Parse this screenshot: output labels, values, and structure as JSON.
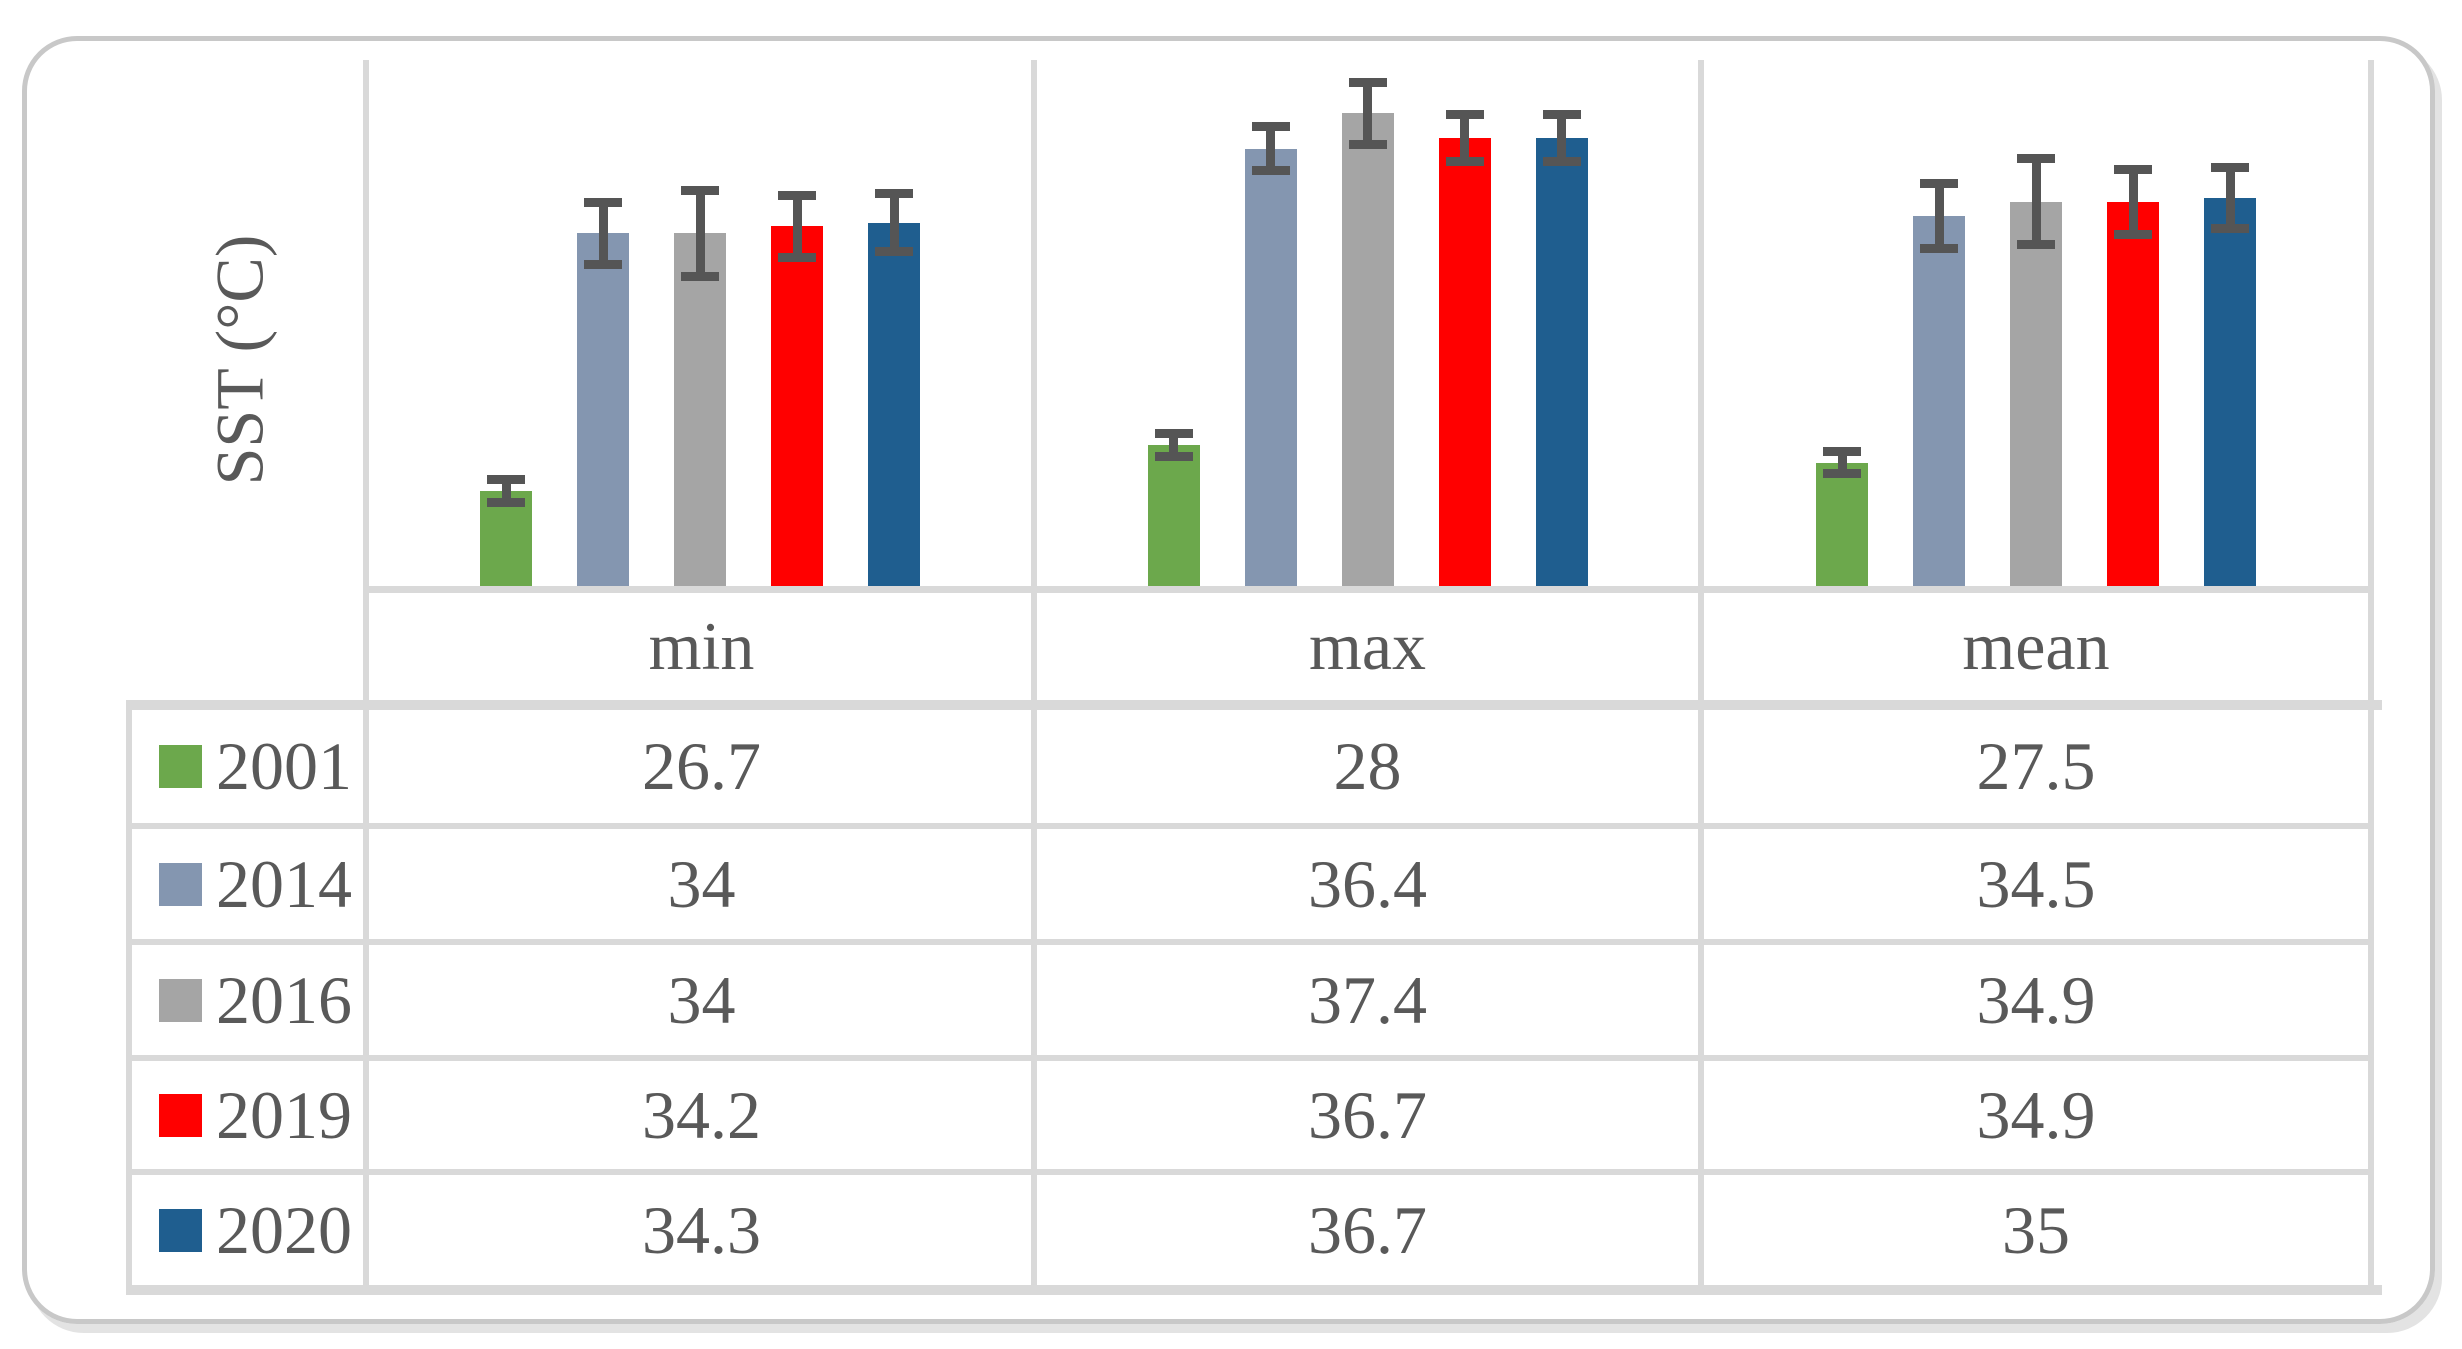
{
  "chart_data": {
    "type": "bar",
    "title": "",
    "ylabel": "SST (°C)",
    "xlabel": "",
    "categories": [
      "min",
      "max",
      "mean"
    ],
    "series": [
      {
        "name": "2001",
        "color": "#6CA84C",
        "values": [
          26.7,
          28.0,
          27.5
        ],
        "errors": [
          0.45,
          0.45,
          0.45
        ]
      },
      {
        "name": "2014",
        "color": "#8496B0",
        "values": [
          34.0,
          36.4,
          34.5
        ],
        "errors": [
          1.0,
          0.75,
          1.05
        ]
      },
      {
        "name": "2016",
        "color": "#A5A5A5",
        "values": [
          34.0,
          37.4,
          34.9
        ],
        "errors": [
          1.35,
          1.0,
          1.35
        ]
      },
      {
        "name": "2019",
        "color": "#FF0000",
        "values": [
          34.2,
          36.7,
          34.9
        ],
        "errors": [
          1.0,
          0.8,
          1.05
        ]
      },
      {
        "name": "2020",
        "color": "#1F5E8F",
        "values": [
          34.3,
          36.7,
          35.0
        ],
        "errors": [
          0.95,
          0.8,
          1.0
        ]
      }
    ],
    "ylim": [
      24,
      39
    ],
    "grid": false,
    "error_bars": true,
    "legend_position": "left-of-table-rows"
  },
  "table": {
    "column_headers": [
      "min",
      "max",
      "mean"
    ],
    "rows": [
      {
        "year": "2001",
        "values": [
          "26.7",
          "28",
          "27.5"
        ]
      },
      {
        "year": "2014",
        "values": [
          "34",
          "36.4",
          "34.5"
        ]
      },
      {
        "year": "2016",
        "values": [
          "34",
          "37.4",
          "34.9"
        ]
      },
      {
        "year": "2019",
        "values": [
          "34.2",
          "36.7",
          "34.9"
        ]
      },
      {
        "year": "2020",
        "values": [
          "34.3",
          "36.7",
          "35"
        ]
      }
    ]
  },
  "style": {
    "text_color": "#595959",
    "error_bar_color": "#555555",
    "grid_color": "#D9D9D9",
    "card_border_color": "#C8C8C8",
    "background": "#FFFFFF"
  }
}
